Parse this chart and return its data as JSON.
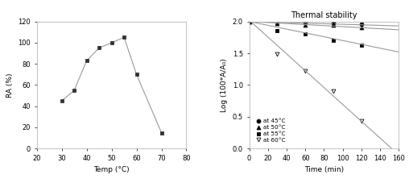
{
  "left": {
    "x": [
      30,
      35,
      40,
      45,
      50,
      55,
      60,
      70
    ],
    "y": [
      45,
      55,
      83,
      95,
      100,
      105,
      70,
      15
    ],
    "xlabel": "Temp (°C)",
    "ylabel": "RA (%)",
    "xlim": [
      20,
      80
    ],
    "ylim": [
      0,
      120
    ],
    "xticks": [
      20,
      30,
      40,
      50,
      60,
      70,
      80
    ],
    "yticks": [
      0,
      20,
      40,
      60,
      80,
      100,
      120
    ],
    "linecolor": "#999999",
    "markercolor": "#333333"
  },
  "right": {
    "title": "Thermal stability",
    "xlabel": "Time (min)",
    "ylabel": "Log (100*A/A₀)",
    "xlim": [
      0,
      160
    ],
    "ylim": [
      0.0,
      2.0
    ],
    "xticks": [
      0,
      20,
      40,
      60,
      80,
      100,
      120,
      140,
      160
    ],
    "yticks": [
      0.0,
      0.5,
      1.0,
      1.5,
      2.0
    ],
    "series": [
      {
        "label": "at 45°C",
        "marker": "o",
        "fillstyle": "full",
        "x": [
          0,
          30,
          60,
          90,
          120
        ],
        "y": [
          2.0,
          2.0,
          1.98,
          1.97,
          1.96
        ],
        "fit_x": [
          0,
          160
        ],
        "fit_y": [
          2.0,
          1.93
        ]
      },
      {
        "label": "at 50°C",
        "marker": "^",
        "fillstyle": "full",
        "x": [
          0,
          30,
          60,
          90,
          120
        ],
        "y": [
          2.0,
          1.97,
          1.95,
          1.94,
          1.91
        ],
        "fit_x": [
          0,
          160
        ],
        "fit_y": [
          2.0,
          1.87
        ]
      },
      {
        "label": "at 55°C",
        "marker": "s",
        "fillstyle": "full",
        "x": [
          0,
          30,
          60,
          90,
          120
        ],
        "y": [
          2.0,
          1.85,
          1.8,
          1.7,
          1.63
        ],
        "fit_x": [
          0,
          160
        ],
        "fit_y": [
          2.0,
          1.52
        ]
      },
      {
        "label": "at 60°C",
        "marker": "v",
        "fillstyle": "none",
        "x": [
          0,
          30,
          60,
          90,
          120
        ],
        "y": [
          2.0,
          1.49,
          1.22,
          0.9,
          0.43
        ],
        "fit_x": [
          0,
          160
        ],
        "fit_y": [
          2.02,
          -0.1
        ]
      }
    ]
  }
}
